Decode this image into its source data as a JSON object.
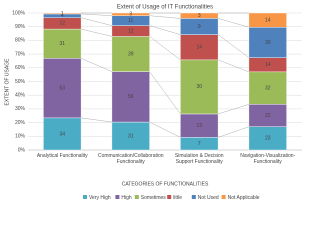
{
  "chart_data": {
    "type": "stacked_percent_bar",
    "title": "Extent of Usage of IT Functionalities",
    "x_label": "CATEGORIES OF FUNCTIONALITIES",
    "y_label": "EXTENT OF USAGE",
    "categories": [
      "Analytical Functionality",
      "Communication/Collaboration Functionality",
      "Simulation & Decision Support Functionality",
      "Navigation-Visualization-Functionality"
    ],
    "series": [
      {
        "name": "Very High",
        "color": "#4bacc6",
        "values": [
          34,
          31,
          7,
          23
        ]
      },
      {
        "name": "High",
        "color": "#8064a2",
        "values": [
          63,
          56,
          13,
          22
        ]
      },
      {
        "name": "Sometimes",
        "color": "#9bbb59",
        "values": [
          31,
          39,
          30,
          32
        ]
      },
      {
        "name": "little",
        "color": "#c0504d",
        "values": [
          12,
          12,
          14,
          14
        ]
      },
      {
        "name": "Not Used",
        "color": "#4f81bd",
        "values": [
          4,
          11,
          9,
          30
        ]
      },
      {
        "name": "Not Applicable",
        "color": "#f79646",
        "values": [
          1,
          3,
          3,
          14
        ]
      }
    ],
    "ylim": [
      0,
      100
    ],
    "yticks": [
      {
        "value": 0,
        "label": "0%"
      },
      {
        "value": 10,
        "label": "10%"
      },
      {
        "value": 20,
        "label": "20%"
      },
      {
        "value": 30,
        "label": "30%"
      },
      {
        "value": 40,
        "label": "40%"
      },
      {
        "value": 50,
        "label": "50%"
      },
      {
        "value": 60,
        "label": "60%"
      },
      {
        "value": 70,
        "label": "70%"
      },
      {
        "value": 80,
        "label": "80%"
      },
      {
        "value": 90,
        "label": "90%"
      },
      {
        "value": 100,
        "label": "100%"
      }
    ],
    "grid": true,
    "legend": "bottom"
  }
}
